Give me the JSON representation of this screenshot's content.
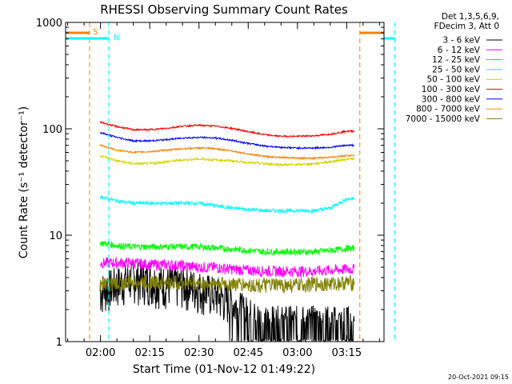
{
  "chart_data": {
    "type": "line",
    "title": "RHESSI Observing Summary Count Rates",
    "xlabel": "Start Time (01-Nov-12 01:49:22)",
    "ylabel": "Count Rate (s⁻¹ detector⁻¹)",
    "yscale": "log",
    "ylim": [
      1,
      1000
    ],
    "xlim_minutes_since_start": [
      0,
      97
    ],
    "x_ticks": [
      "02:00",
      "02:15",
      "02:30",
      "02:45",
      "03:00",
      "03:15"
    ],
    "y_ticks": [
      "1",
      "10",
      "100",
      "1000"
    ],
    "timestamp": "20-Oct-2021 09:15",
    "legend": {
      "placement": "right",
      "header": [
        "Det 1,3,5,6,9,",
        "FDecim 3, Att 0"
      ],
      "entries": [
        {
          "label": "3 - 6 keV",
          "color": "#000000"
        },
        {
          "label": "6 - 12 keV",
          "color": "#ff00ff"
        },
        {
          "label": "12 - 25 keV",
          "color": "#00ff00"
        },
        {
          "label": "25 - 50 keV",
          "color": "#00ffff"
        },
        {
          "label": "50 - 100 keV",
          "color": "#d4d400"
        },
        {
          "label": "100 - 300 keV",
          "color": "#ff0000"
        },
        {
          "label": "300 - 800 keV",
          "color": "#0000ff"
        },
        {
          "label": "800 - 7000 keV",
          "color": "#ff8000"
        },
        {
          "label": "7000 - 15000 keV",
          "color": "#808000"
        }
      ]
    },
    "markers": [
      {
        "label": "S",
        "color": "#ff8000",
        "x": [
          "01:56:40",
          "03:19:00"
        ]
      },
      {
        "label": "N",
        "color": "#00ffff",
        "x": [
          "02:02:30",
          "03:29:40"
        ]
      }
    ],
    "series": [
      {
        "name": "3 - 6 keV",
        "color": "#000000",
        "x": [
          "02:00",
          "02:05",
          "02:10",
          "02:15",
          "02:20",
          "02:25",
          "02:30",
          "02:35",
          "02:40",
          "02:45",
          "02:50",
          "02:55",
          "03:00",
          "03:05",
          "03:10",
          "03:15"
        ],
        "values": [
          3.0,
          3.5,
          4.0,
          3.8,
          3.5,
          3.5,
          3.2,
          2.8,
          2.3,
          1.8,
          1.5,
          1.5,
          1.5,
          1.5,
          1.5,
          1.5
        ]
      },
      {
        "name": "6 - 12 keV",
        "color": "#ff00ff",
        "x": [
          "02:00",
          "02:05",
          "02:10",
          "02:15",
          "02:20",
          "02:25",
          "02:30",
          "02:35",
          "02:40",
          "02:45",
          "02:50",
          "02:55",
          "03:00",
          "03:05",
          "03:10",
          "03:15"
        ],
        "values": [
          5.5,
          5.5,
          5.5,
          5.3,
          5.3,
          5.2,
          5.0,
          5.0,
          4.8,
          4.7,
          4.6,
          4.6,
          4.6,
          4.6,
          4.7,
          4.8
        ]
      },
      {
        "name": "12 - 25 keV",
        "color": "#00ff00",
        "x": [
          "02:00",
          "02:05",
          "02:10",
          "02:15",
          "02:20",
          "02:25",
          "02:30",
          "02:35",
          "02:40",
          "02:45",
          "02:50",
          "02:55",
          "03:00",
          "03:05",
          "03:10",
          "03:15"
        ],
        "values": [
          8.5,
          8.0,
          7.8,
          7.8,
          7.8,
          7.8,
          7.8,
          7.6,
          7.4,
          7.2,
          7.0,
          7.0,
          7.0,
          7.0,
          7.2,
          7.5
        ]
      },
      {
        "name": "25 - 50 keV",
        "color": "#00ffff",
        "x": [
          "02:00",
          "02:05",
          "02:10",
          "02:15",
          "02:20",
          "02:25",
          "02:30",
          "02:35",
          "02:40",
          "02:45",
          "02:50",
          "02:55",
          "03:00",
          "03:05",
          "03:10",
          "03:15"
        ],
        "values": [
          23,
          21,
          20,
          20,
          20,
          20,
          20,
          19,
          18,
          17.5,
          17,
          17,
          17,
          17,
          18,
          22
        ]
      },
      {
        "name": "50 - 100 keV",
        "color": "#d4d400",
        "x": [
          "02:00",
          "02:05",
          "02:10",
          "02:15",
          "02:20",
          "02:25",
          "02:30",
          "02:35",
          "02:40",
          "02:45",
          "02:50",
          "02:55",
          "03:00",
          "03:05",
          "03:10",
          "03:15"
        ],
        "values": [
          56,
          50,
          47,
          47,
          49,
          51,
          52,
          51,
          50,
          48,
          47,
          46,
          46,
          47,
          49,
          52
        ]
      },
      {
        "name": "100 - 300 keV",
        "color": "#ff0000",
        "x": [
          "02:00",
          "02:05",
          "02:10",
          "02:15",
          "02:20",
          "02:25",
          "02:30",
          "02:35",
          "02:40",
          "02:45",
          "02:50",
          "02:55",
          "03:00",
          "03:05",
          "03:10",
          "03:15"
        ],
        "values": [
          115,
          105,
          98,
          98,
          101,
          106,
          108,
          106,
          101,
          94,
          88,
          85,
          85,
          86,
          89,
          95
        ]
      },
      {
        "name": "300 - 800 keV",
        "color": "#0000ff",
        "x": [
          "02:00",
          "02:05",
          "02:10",
          "02:15",
          "02:20",
          "02:25",
          "02:30",
          "02:35",
          "02:40",
          "02:45",
          "02:50",
          "02:55",
          "03:00",
          "03:05",
          "03:10",
          "03:15"
        ],
        "values": [
          92,
          83,
          77,
          77,
          79,
          82,
          83,
          82,
          78,
          73,
          69,
          67,
          66,
          66,
          67,
          70
        ]
      },
      {
        "name": "800 - 7000 keV",
        "color": "#ff8000",
        "x": [
          "02:00",
          "02:05",
          "02:10",
          "02:15",
          "02:20",
          "02:25",
          "02:30",
          "02:35",
          "02:40",
          "02:45",
          "02:50",
          "02:55",
          "03:00",
          "03:05",
          "03:10",
          "03:15"
        ],
        "values": [
          70,
          63,
          60,
          61,
          63,
          65,
          66,
          65,
          62,
          58,
          55,
          54,
          53,
          53,
          54,
          56
        ]
      },
      {
        "name": "7000 - 15000 keV",
        "color": "#808000",
        "x": [
          "02:00",
          "02:05",
          "02:10",
          "02:15",
          "02:20",
          "02:25",
          "02:30",
          "02:35",
          "02:40",
          "02:45",
          "02:50",
          "02:55",
          "03:00",
          "03:05",
          "03:10",
          "03:15"
        ],
        "values": [
          3.5,
          3.5,
          3.6,
          3.6,
          3.6,
          3.6,
          3.5,
          3.5,
          3.5,
          3.4,
          3.4,
          3.4,
          3.4,
          3.5,
          3.5,
          3.6
        ]
      }
    ]
  }
}
